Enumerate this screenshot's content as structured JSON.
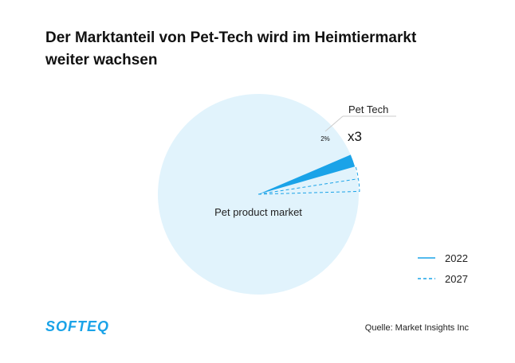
{
  "title_lines": [
    "Der Marktanteil von Pet-Tech wird im Heimtiermarkt",
    "weiter wachsen"
  ],
  "chart_data": {
    "type": "pie",
    "title": "Der Marktanteil von Pet-Tech wird im Heimtiermarkt weiter wachsen",
    "slices": [
      {
        "label": "Pet product market",
        "value": 98
      },
      {
        "label": "Pet Tech",
        "value": 2,
        "data_label": "2%"
      }
    ],
    "projection": {
      "label": "x3",
      "note": "Pet Tech share grows about three times from 2022 to 2027",
      "pet_tech_2022": 2,
      "pet_tech_2027": 6
    },
    "legend": {
      "placement": "bottom-right",
      "entries": [
        {
          "label": "2022",
          "style": "solid"
        },
        {
          "label": "2027",
          "style": "dashed"
        }
      ]
    },
    "colors": {
      "pet_product_market": "#e1f3fc",
      "pet_tech": "#1aa3e8",
      "outline": "#1aa3e8"
    }
  },
  "logo": {
    "text": "SOFTEQ"
  },
  "source": "Quelle: Market Insights Inc"
}
